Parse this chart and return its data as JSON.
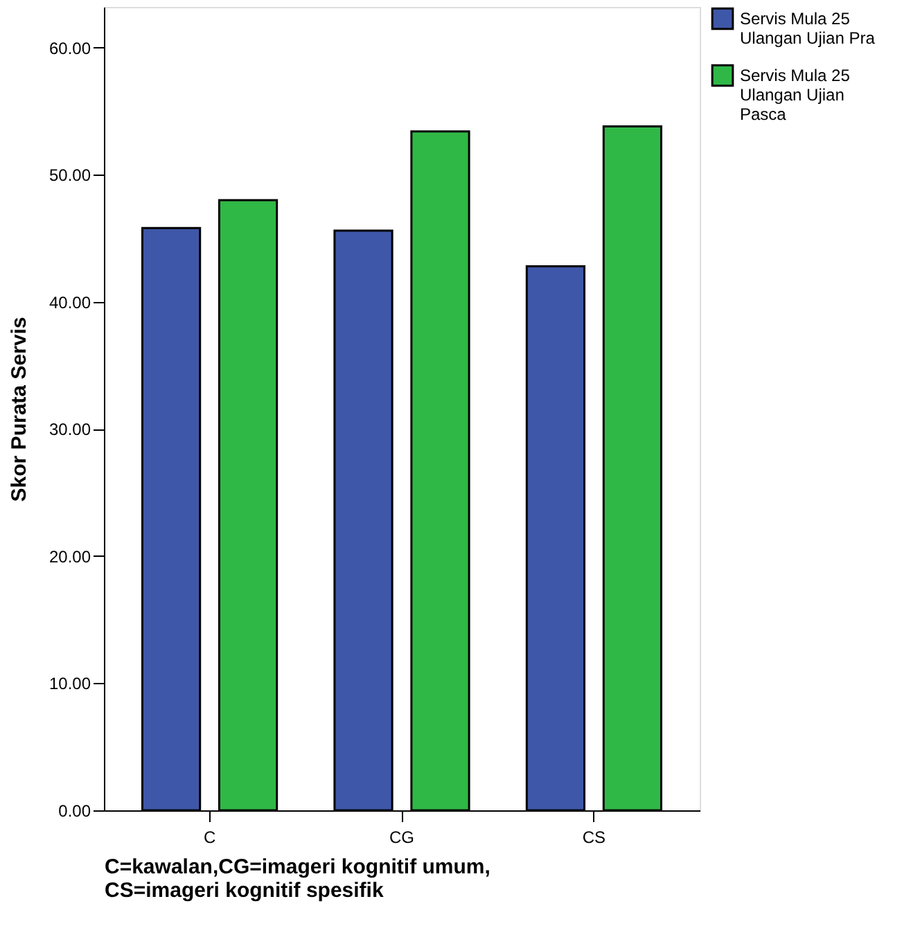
{
  "chart_data": {
    "type": "bar",
    "xlabel": "C=kawalan,CG=imageri kognitif umum,\nCS=imageri kognitif spesifik",
    "ylabel": "Skor Purata Servis",
    "categories": [
      "C",
      "CG",
      "CS"
    ],
    "series": [
      {
        "name": "Servis Mula 25\nUlangan Ujian Pra",
        "color": "#3f57a8",
        "values": [
          45.8,
          45.6,
          42.8
        ]
      },
      {
        "name": "Servis Mula 25\nUlangan Ujian\nPasca",
        "color": "#30b847",
        "values": [
          48.0,
          53.4,
          53.8
        ]
      }
    ],
    "ylim": [
      0,
      63.2
    ],
    "yticks": [
      {
        "value": 0,
        "label": "0.00"
      },
      {
        "value": 10,
        "label": "10.00"
      },
      {
        "value": 20,
        "label": "20.00"
      },
      {
        "value": 30,
        "label": "30.00"
      },
      {
        "value": 40,
        "label": "40.00"
      },
      {
        "value": 50,
        "label": "50.00"
      },
      {
        "value": 60,
        "label": "60.00"
      }
    ],
    "grid": false,
    "legend": "top right"
  }
}
